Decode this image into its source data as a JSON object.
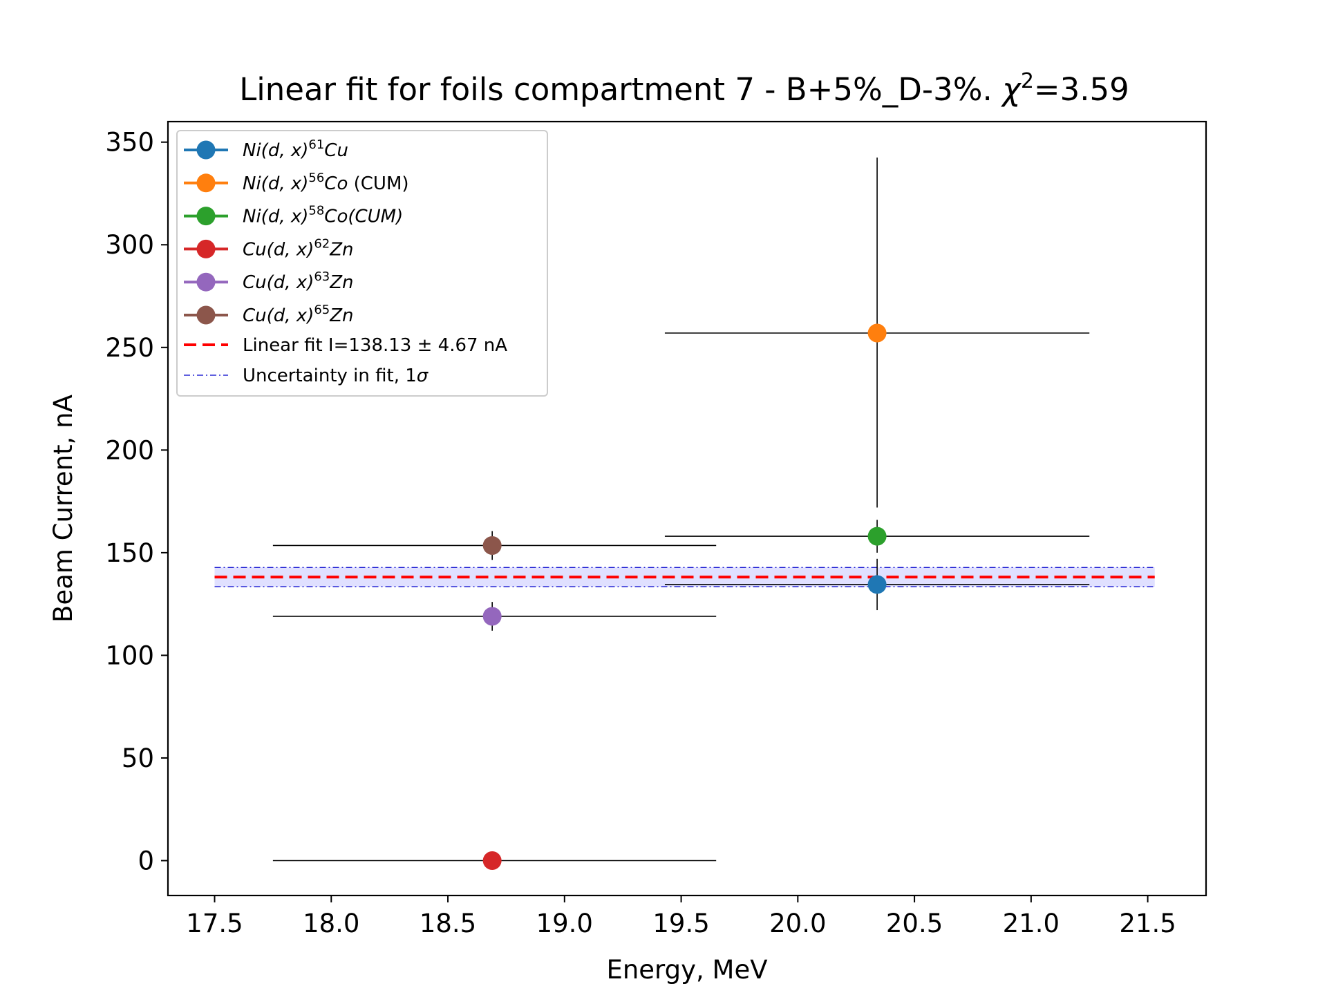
{
  "chart_data": {
    "type": "scatter",
    "title_parts": {
      "main": "Linear fit for foils compartment 7 - B+5%_D-3%. ",
      "chi": "χ",
      "sup": "2",
      "tail": "=3.59"
    },
    "xlabel": "Energy, MeV",
    "ylabel": "Beam Current, nA",
    "xlim": [
      17.3,
      21.75
    ],
    "ylim": [
      -17,
      360
    ],
    "x_ticks": [
      "17.5",
      "18.0",
      "18.5",
      "19.0",
      "19.5",
      "20.0",
      "20.5",
      "21.0",
      "21.5"
    ],
    "x_tick_values": [
      17.5,
      18.0,
      18.5,
      19.0,
      19.5,
      20.0,
      20.5,
      21.0,
      21.5
    ],
    "y_ticks": [
      "0",
      "50",
      "100",
      "150",
      "200",
      "250",
      "300",
      "350"
    ],
    "y_tick_values": [
      0,
      50,
      100,
      150,
      200,
      250,
      300,
      350
    ],
    "legend_position": "upper-left",
    "series": [
      {
        "name": "Ni(d,x)61Cu",
        "legend": {
          "pre": "Ni(d, x)",
          "sup": "61",
          "post": "Cu",
          "extra": ""
        },
        "color": "#1f77b4",
        "x": 20.34,
        "y": 134.5,
        "xerr": [
          19.43,
          21.25
        ],
        "yerr": [
          122,
          147
        ]
      },
      {
        "name": "Ni(d,x)56Co (CUM)",
        "legend": {
          "pre": "Ni(d, x)",
          "sup": "56",
          "post": "Co",
          "extra": " (CUM)"
        },
        "color": "#ff7f0e",
        "x": 20.34,
        "y": 257,
        "xerr": [
          19.43,
          21.25
        ],
        "yerr": [
          172,
          342.5
        ]
      },
      {
        "name": "Ni(d,x)58Co(CUM)",
        "legend": {
          "pre": "Ni(d, x)",
          "sup": "58",
          "post": "Co(CUM)",
          "extra": ""
        },
        "color": "#2ca02c",
        "x": 20.34,
        "y": 158,
        "xerr": [
          19.43,
          21.25
        ],
        "yerr": [
          150,
          166
        ]
      },
      {
        "name": "Cu(d,x)62Zn",
        "legend": {
          "pre": "Cu(d, x)",
          "sup": "62",
          "post": "Zn",
          "extra": ""
        },
        "color": "#d62728",
        "x": 18.69,
        "y": 0,
        "xerr": [
          17.75,
          19.65
        ],
        "yerr": [
          0,
          0
        ]
      },
      {
        "name": "Cu(d,x)63Zn",
        "legend": {
          "pre": "Cu(d, x)",
          "sup": "63",
          "post": "Zn",
          "extra": ""
        },
        "color": "#9467bd",
        "x": 18.69,
        "y": 119,
        "xerr": [
          17.75,
          19.65
        ],
        "yerr": [
          112,
          126
        ]
      },
      {
        "name": "Cu(d,x)65Zn",
        "legend": {
          "pre": "Cu(d, x)",
          "sup": "65",
          "post": "Zn",
          "extra": ""
        },
        "color": "#8c564b",
        "x": 18.69,
        "y": 153.5,
        "xerr": [
          17.75,
          19.65
        ],
        "yerr": [
          146.5,
          160.5
        ]
      }
    ],
    "fit": {
      "label": "Linear fit I=138.13 ± 4.67 nA",
      "value": 138.13,
      "uncertainty": 4.67,
      "x_range": [
        17.5,
        21.53
      ],
      "color": "#ff0000"
    },
    "band": {
      "label_pre": "Uncertainty in fit, 1",
      "label_sym": "σ",
      "color": "#0000cc",
      "fill": "#ccccff"
    }
  }
}
